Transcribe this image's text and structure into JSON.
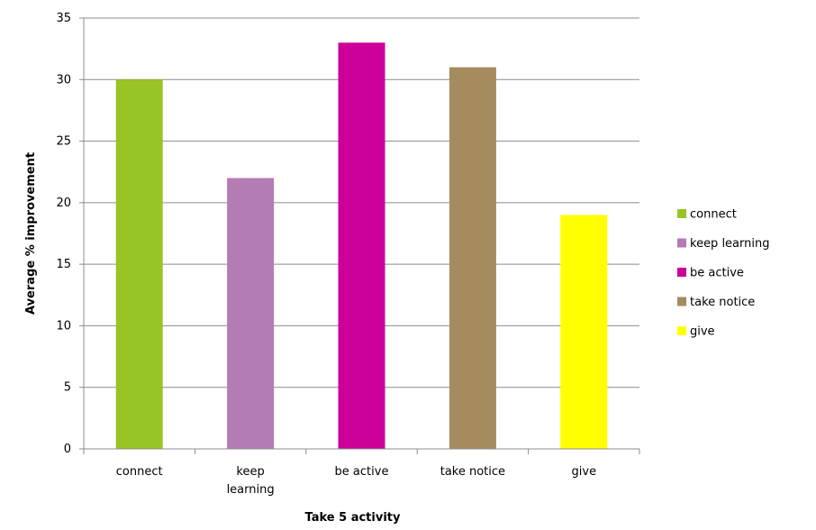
{
  "chart_data": {
    "type": "bar",
    "categories": [
      "connect",
      "keep learning",
      "be active",
      "take notice",
      "give"
    ],
    "category_tick_labels": [
      [
        "connect"
      ],
      [
        "keep",
        "learning"
      ],
      [
        "be active"
      ],
      [
        "take notice"
      ],
      [
        "give"
      ]
    ],
    "values": [
      30,
      22,
      33,
      31,
      19
    ],
    "bar_colors": [
      "#99c426",
      "#b57bb5",
      "#cc0099",
      "#a58c5f",
      "#ffff00"
    ],
    "legend": [
      {
        "label": "connect",
        "color": "#99c426"
      },
      {
        "label": "keep learning",
        "color": "#b57bb5"
      },
      {
        "label": "be active",
        "color": "#cc0099"
      },
      {
        "label": "take notice",
        "color": "#a58c5f"
      },
      {
        "label": "give",
        "color": "#ffff00"
      }
    ],
    "title": "",
    "xlabel": "Take 5 activity",
    "ylabel": "Average % improvement",
    "ylim": [
      0,
      35
    ],
    "yticks": [
      0,
      5,
      10,
      15,
      20,
      25,
      30,
      35
    ],
    "grid": true,
    "legend_position": "right"
  }
}
